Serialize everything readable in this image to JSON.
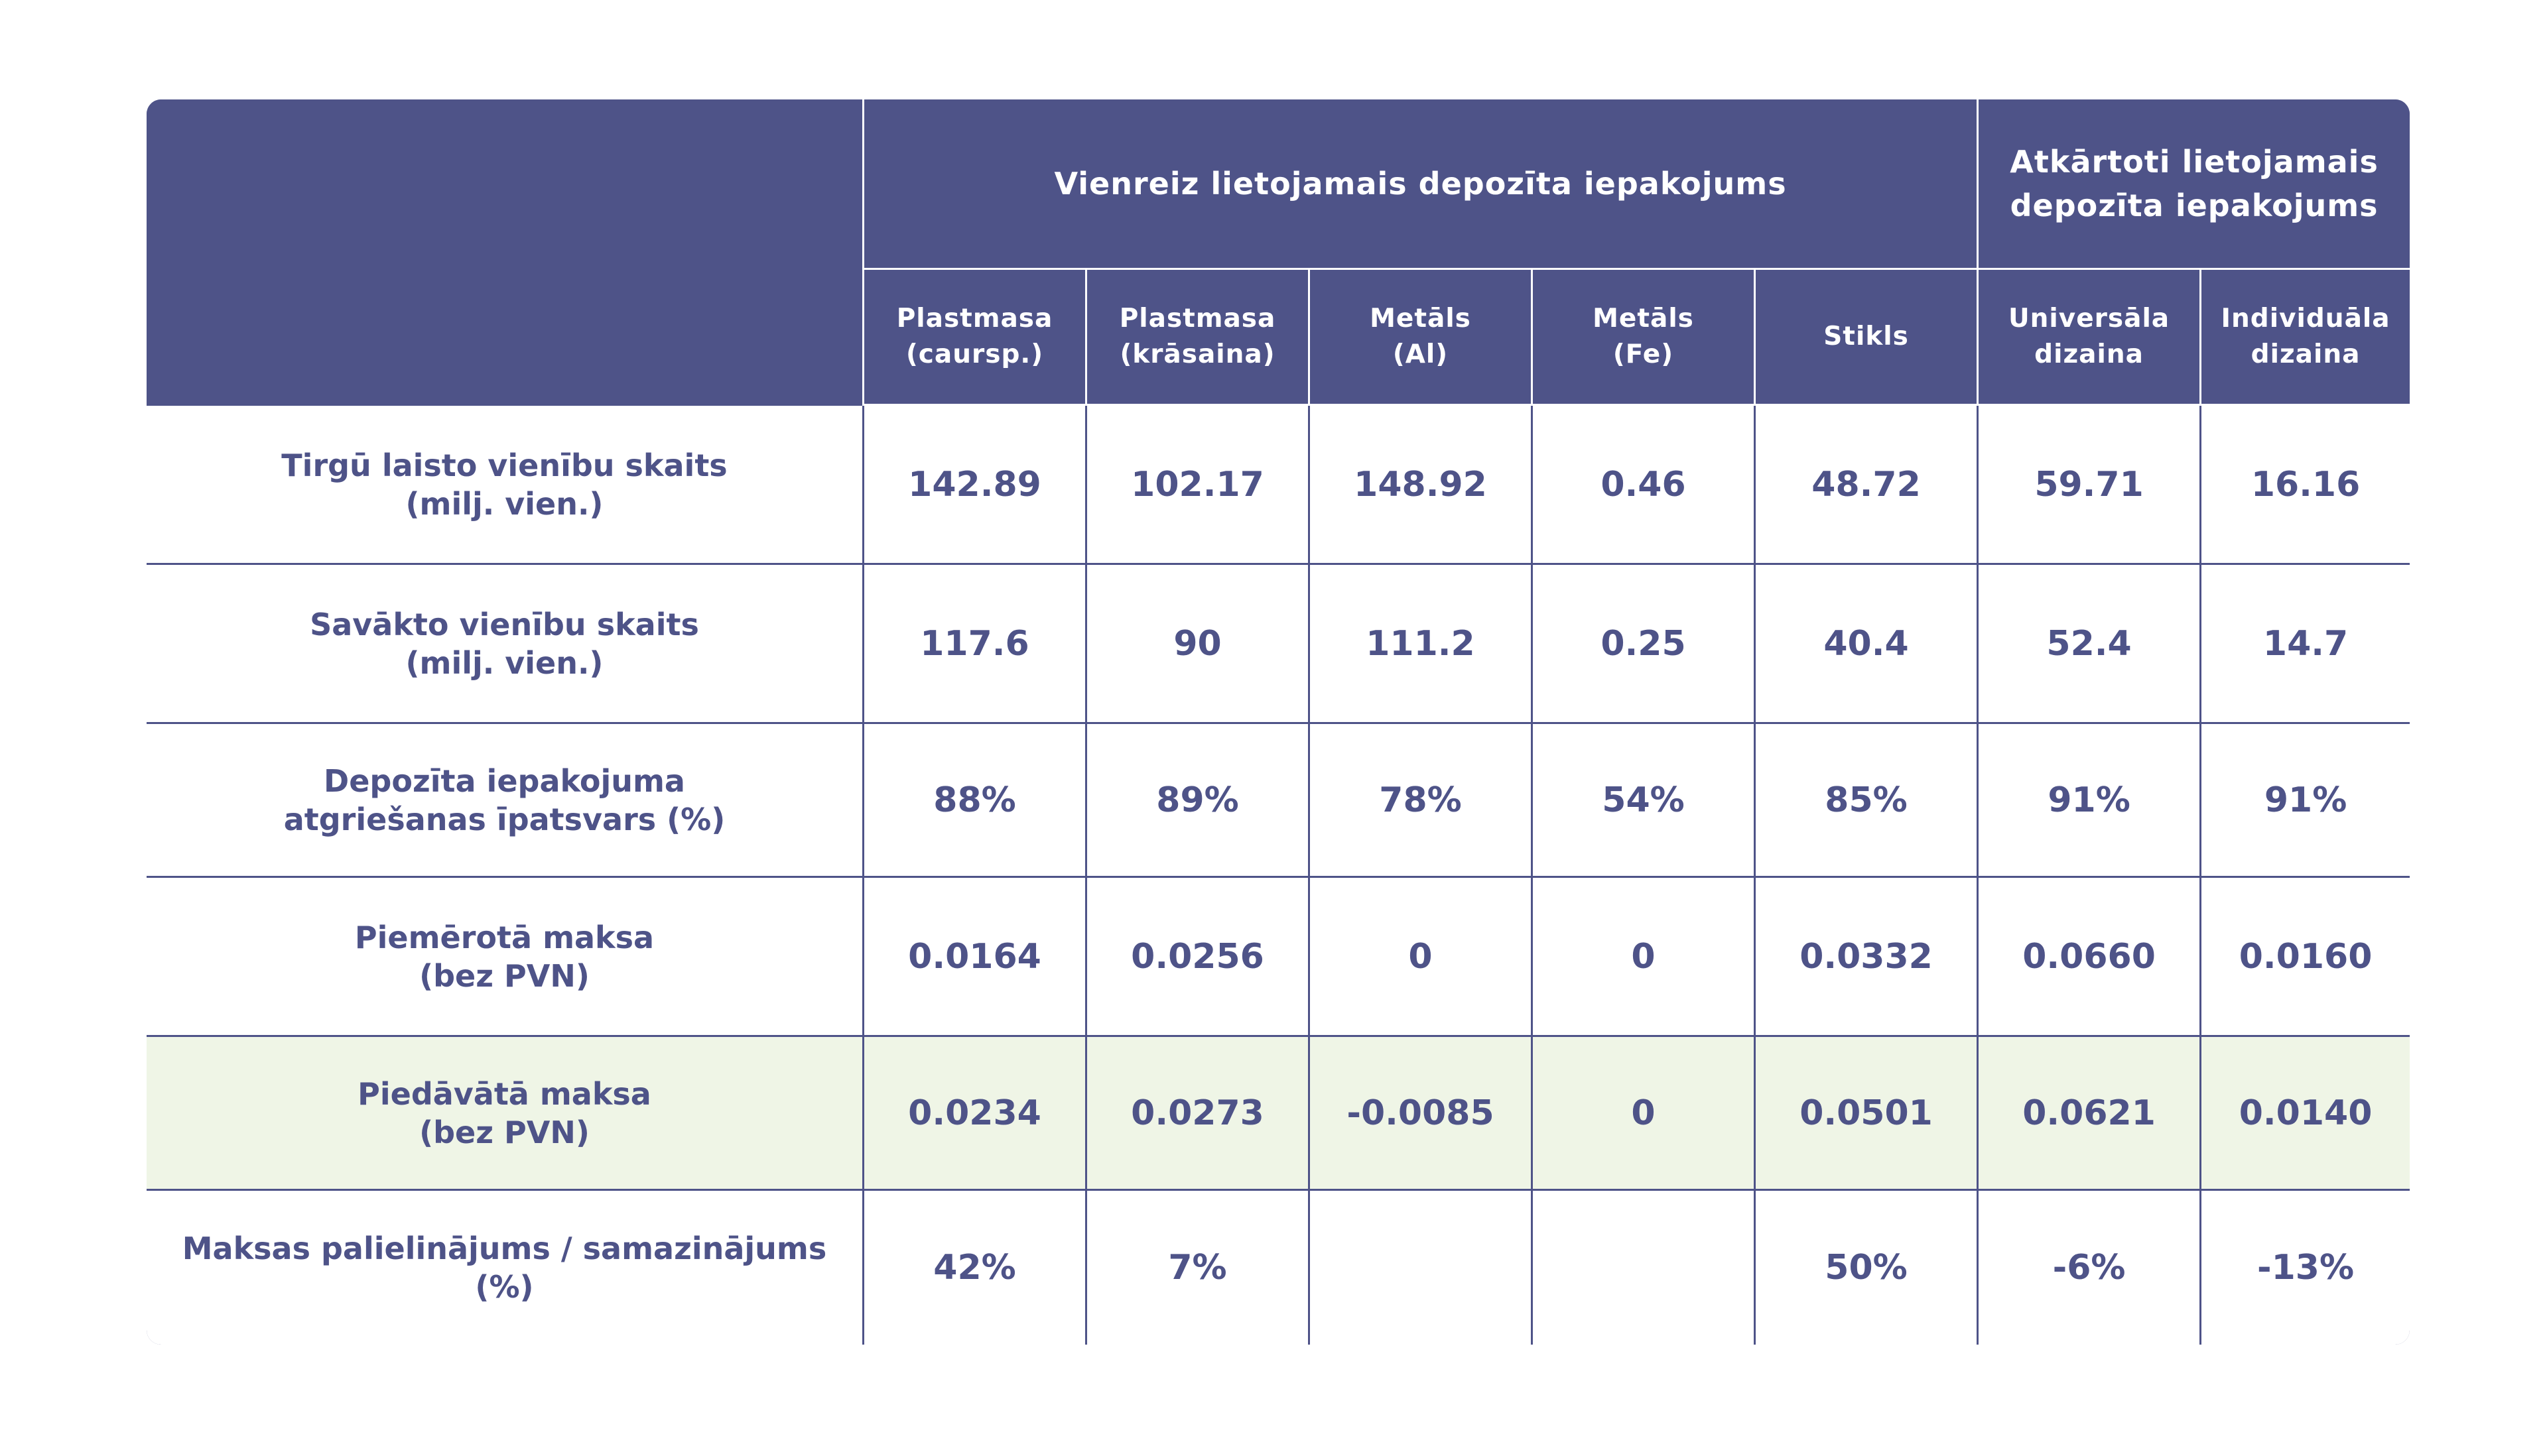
{
  "colors": {
    "header_bg": "#4e5388",
    "text": "#4e5388",
    "border": "#4e5388",
    "highlight_row_bg": "#eff5e6",
    "background": "#ffffff"
  },
  "chart_data": {
    "type": "table",
    "column_groups": [
      {
        "label": "Vienreiz lietojamais depozīta iepakojums",
        "span": 5
      },
      {
        "label": "Atkārtoti lietojamais\ndepozīta iepakojums",
        "span": 2
      }
    ],
    "columns": [
      "Plastmasa\n(caursp.)",
      "Plastmasa\n(krāsaina)",
      "Metāls\n(Al)",
      "Metāls\n(Fe)",
      "Stikls",
      "Universāla\ndizaina",
      "Individuāla\ndizaina"
    ],
    "rows": [
      {
        "label": "Tirgū laisto vienību skaits\n(milj. vien.)",
        "values": [
          "142.89",
          "102.17",
          "148.92",
          "0.46",
          "48.72",
          "59.71",
          "16.16"
        ],
        "highlight": false
      },
      {
        "label": "Savākto vienību skaits\n(milj. vien.)",
        "values": [
          "117.6",
          "90",
          "111.2",
          "0.25",
          "40.4",
          "52.4",
          "14.7"
        ],
        "highlight": false
      },
      {
        "label": "Depozīta iepakojuma\natgriešanas īpatsvars (%)",
        "values": [
          "88%",
          "89%",
          "78%",
          "54%",
          "85%",
          "91%",
          "91%"
        ],
        "highlight": false
      },
      {
        "label": "Piemērotā maksa\n(bez PVN)",
        "values": [
          "0.0164",
          "0.0256",
          "0",
          "0",
          "0.0332",
          "0.0660",
          "0.0160"
        ],
        "highlight": false
      },
      {
        "label": "Piedāvātā maksa\n(bez PVN)",
        "values": [
          "0.0234",
          "0.0273",
          "-0.0085",
          "0",
          "0.0501",
          "0.0621",
          "0.0140"
        ],
        "highlight": true
      },
      {
        "label": "Maksas palielinājums / samazinājums\n(%)",
        "values": [
          "42%",
          "7%",
          "",
          "",
          "50%",
          "-6%",
          "-13%"
        ],
        "highlight": false
      }
    ]
  }
}
